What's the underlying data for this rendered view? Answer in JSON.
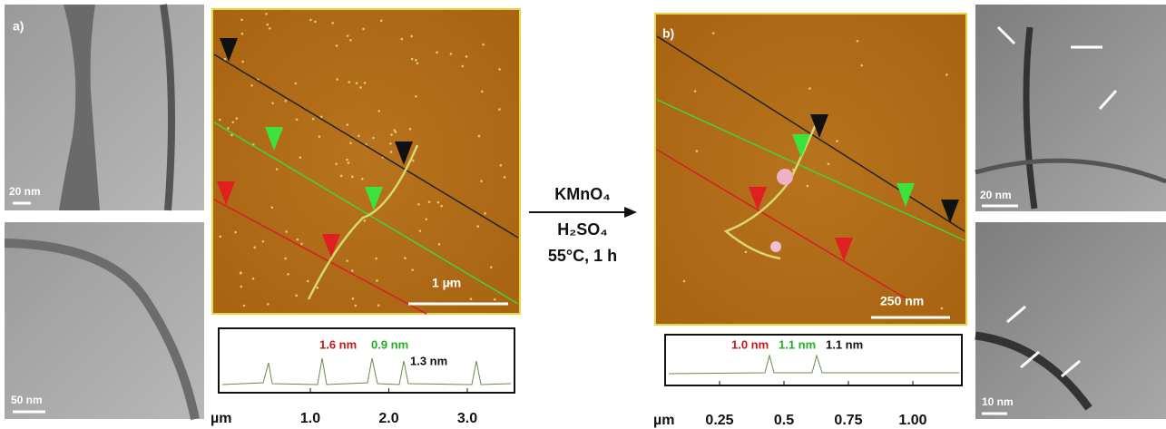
{
  "panel_a": {
    "label": "a)",
    "tem_top_scale": "20 nm",
    "tem_bottom_scale": "50 nm",
    "afm_scale": "1 µm",
    "profile": {
      "heights": [
        "1.6 nm",
        "0.9 nm",
        "1.3 nm"
      ],
      "x_unit": "µm",
      "xticks": [
        {
          "value": 1,
          "label": "1.0"
        },
        {
          "value": 2,
          "label": "2.0"
        },
        {
          "value": 3,
          "label": "3.0"
        }
      ]
    }
  },
  "reaction": {
    "reagent_1": "KMnO₄",
    "reagent_2": "H₂SO₄",
    "conditions": "55°C, 1 h"
  },
  "panel_b": {
    "label": "b)",
    "afm_scale": "250 nm",
    "tem_top_scale": "20 nm",
    "tem_bottom_scale": "10 nm",
    "profile": {
      "heights": [
        "1.0 nm",
        "1.1 nm",
        "1.1 nm"
      ],
      "x_unit": "µm",
      "xticks": [
        0.25,
        0.5,
        {
          "value": 0.75,
          "label": "0.75"
        },
        {
          "value": 1,
          "label": "1.00"
        }
      ]
    }
  }
}
